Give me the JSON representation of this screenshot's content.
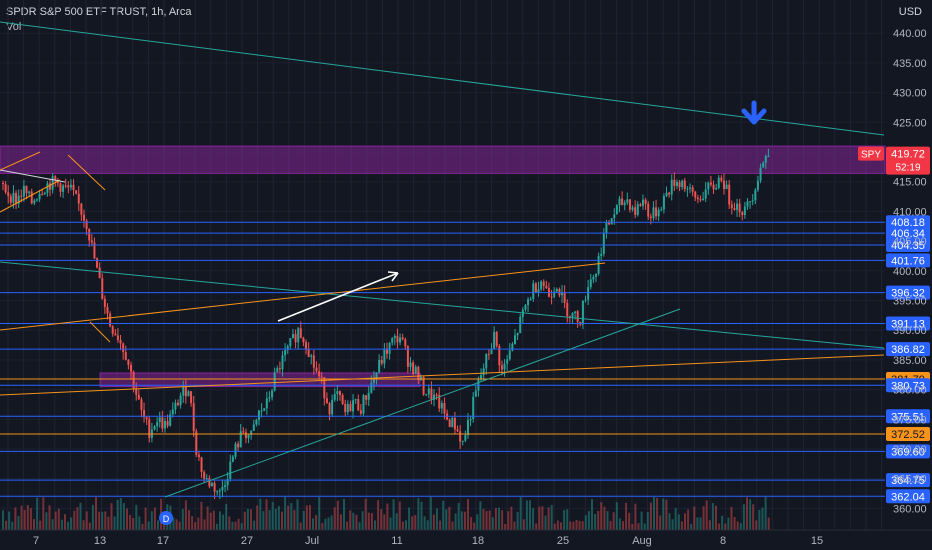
{
  "header": {
    "title": "SPDR S&P 500 ETF TRUST, 1h, Arca",
    "volume_label": "Vol",
    "currency": "USD"
  },
  "colors": {
    "background": "#131722",
    "up": "#26a69a",
    "down": "#ef5350",
    "level_line": "#2962ff",
    "orange_line": "#f7931a",
    "teal_line": "#26a69a",
    "zone": "#9c27b0",
    "arrow_blue": "#2962ff"
  },
  "chart_data": {
    "type": "candlestick",
    "title": "SPDR S&P 500 ETF TRUST, 1h, Arca",
    "ylabel": "USD",
    "ylim": [
      358,
      444
    ],
    "grid": true,
    "y_ticks": [
      440,
      435,
      430,
      425,
      420,
      415,
      410,
      405,
      400,
      395,
      390,
      385,
      380,
      375,
      370,
      365,
      360
    ],
    "x_ticks": [
      "7",
      "13",
      "17",
      "27",
      "Jul",
      "11",
      "18",
      "25",
      "Aug",
      "8",
      "15"
    ],
    "last_price": {
      "symbol": "SPY",
      "value": "419.72",
      "countdown": "52:19"
    },
    "levels": [
      {
        "value": 408.18,
        "label": "408.18",
        "color": "#2962ff"
      },
      {
        "value": 406.34,
        "label": "406.34",
        "color": "#2962ff"
      },
      {
        "value": 404.35,
        "label": "404.35",
        "color": "#2962ff"
      },
      {
        "value": 401.76,
        "label": "401.76",
        "color": "#2962ff"
      },
      {
        "value": 396.32,
        "label": "396.32",
        "color": "#2962ff"
      },
      {
        "value": 391.13,
        "label": "391.13",
        "color": "#2962ff"
      },
      {
        "value": 386.82,
        "label": "386.82",
        "color": "#2962ff"
      },
      {
        "value": 381.79,
        "label": "381.79",
        "color": "#f7931a"
      },
      {
        "value": 380.73,
        "label": "380.73",
        "color": "#2962ff"
      },
      {
        "value": 375.51,
        "label": "375.51",
        "color": "#2962ff"
      },
      {
        "value": 372.52,
        "label": "372.52",
        "color": "#f7931a"
      },
      {
        "value": 369.6,
        "label": "369.60",
        "color": "#2962ff"
      },
      {
        "value": 364.75,
        "label": "364.75",
        "color": "#2962ff"
      },
      {
        "value": 362.04,
        "label": "362.04",
        "color": "#2962ff"
      }
    ],
    "zones": [
      {
        "from": 416.4,
        "to": 421.0,
        "range": "full"
      },
      {
        "from": 380.5,
        "to": 382.8,
        "range": "partial"
      }
    ],
    "price_path": [
      414.8,
      413.0,
      412.0,
      413.5,
      411.5,
      413.5,
      414.5,
      415.0,
      414.0,
      413.5,
      411.0,
      408.0,
      402.0,
      396.0,
      391.0,
      389.0,
      386.0,
      381.0,
      376.0,
      373.0,
      375.0,
      374.0,
      376.0,
      379.0,
      380.5,
      370.0,
      365.0,
      364.0,
      362.5,
      366.0,
      370.0,
      373.0,
      372.0,
      376.0,
      377.5,
      382.0,
      385.0,
      387.5,
      390.0,
      388.0,
      384.0,
      381.0,
      377.0,
      379.0,
      376.0,
      378.0,
      377.0,
      380.0,
      383.0,
      386.0,
      388.0,
      389.0,
      385.0,
      383.0,
      380.0,
      379.0,
      377.5,
      375.0,
      374.0,
      371.0,
      376.0,
      381.0,
      385.0,
      389.0,
      383.0,
      386.0,
      390.0,
      394.0,
      397.0,
      398.5,
      396.0,
      398.0,
      394.0,
      392.5,
      392.0,
      398.0,
      400.0,
      406.0,
      409.0,
      411.0,
      412.0,
      410.0,
      412.0,
      409.0,
      410.5,
      413.0,
      415.0,
      415.0,
      413.0,
      412.0,
      413.5,
      414.0,
      416.0,
      412.0,
      411.0,
      410.0,
      413.0,
      417.5,
      419.7
    ]
  }
}
